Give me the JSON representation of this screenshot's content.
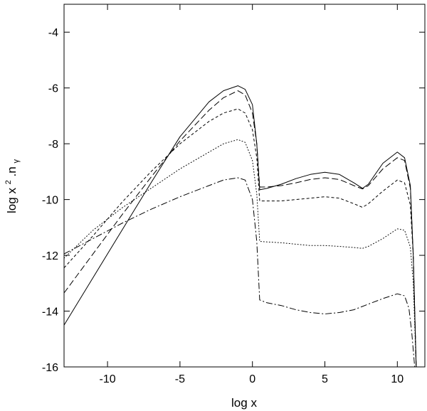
{
  "chart_data": {
    "type": "line",
    "title": "",
    "xlabel": "log x",
    "ylabel": {
      "base": "log x",
      "sup": "2",
      "mid": ".n",
      "sub": "γ"
    },
    "xlim": [
      -13,
      11.9
    ],
    "ylim": [
      -16,
      -3
    ],
    "xticks": [
      -10,
      -5,
      0,
      5,
      10
    ],
    "yticks": [
      -16,
      -14,
      -12,
      -10,
      -8,
      -6,
      -4
    ],
    "grid": false,
    "legend": "none",
    "series": [
      {
        "style": "solid",
        "points": [
          [
            -13,
            -14.5
          ],
          [
            -11,
            -12.8
          ],
          [
            -9,
            -11.1
          ],
          [
            -7,
            -9.4
          ],
          [
            -5,
            -7.75
          ],
          [
            -3,
            -6.5
          ],
          [
            -2,
            -6.1
          ],
          [
            -1,
            -5.92
          ],
          [
            -0.5,
            -6.05
          ],
          [
            0,
            -6.6
          ],
          [
            0.3,
            -8.0
          ],
          [
            0.5,
            -9.65
          ],
          [
            1,
            -9.6
          ],
          [
            2,
            -9.45
          ],
          [
            3,
            -9.25
          ],
          [
            4,
            -9.1
          ],
          [
            5,
            -9.02
          ],
          [
            6,
            -9.1
          ],
          [
            7,
            -9.4
          ],
          [
            7.6,
            -9.6
          ],
          [
            8,
            -9.45
          ],
          [
            9,
            -8.7
          ],
          [
            10,
            -8.3
          ],
          [
            10.5,
            -8.5
          ],
          [
            10.9,
            -9.5
          ],
          [
            11.1,
            -12
          ],
          [
            11.3,
            -16
          ]
        ]
      },
      {
        "style": "long-dash",
        "points": [
          [
            -13,
            -13.35
          ],
          [
            -11,
            -11.95
          ],
          [
            -9,
            -10.55
          ],
          [
            -7,
            -9.2
          ],
          [
            -5,
            -7.9
          ],
          [
            -3,
            -6.8
          ],
          [
            -2,
            -6.35
          ],
          [
            -1,
            -6.1
          ],
          [
            -0.5,
            -6.25
          ],
          [
            0,
            -6.9
          ],
          [
            0.3,
            -8.0
          ],
          [
            0.5,
            -9.55
          ],
          [
            1,
            -9.55
          ],
          [
            2,
            -9.5
          ],
          [
            3,
            -9.4
          ],
          [
            4,
            -9.28
          ],
          [
            5,
            -9.22
          ],
          [
            6,
            -9.28
          ],
          [
            7,
            -9.5
          ],
          [
            7.6,
            -9.62
          ],
          [
            8,
            -9.5
          ],
          [
            9,
            -8.9
          ],
          [
            10,
            -8.5
          ],
          [
            10.5,
            -8.6
          ],
          [
            10.9,
            -9.6
          ],
          [
            11.1,
            -12
          ],
          [
            11.3,
            -16
          ]
        ]
      },
      {
        "style": "short-dash",
        "points": [
          [
            -13,
            -12.45
          ],
          [
            -11,
            -11.3
          ],
          [
            -9,
            -10.1
          ],
          [
            -7,
            -9.0
          ],
          [
            -5,
            -8.0
          ],
          [
            -3,
            -7.2
          ],
          [
            -2,
            -6.9
          ],
          [
            -1,
            -6.75
          ],
          [
            -0.5,
            -6.9
          ],
          [
            0,
            -7.5
          ],
          [
            0.3,
            -8.5
          ],
          [
            0.5,
            -10.05
          ],
          [
            1,
            -10.05
          ],
          [
            2,
            -10.05
          ],
          [
            3,
            -10.0
          ],
          [
            4,
            -9.95
          ],
          [
            5,
            -9.9
          ],
          [
            6,
            -9.95
          ],
          [
            7,
            -10.15
          ],
          [
            7.6,
            -10.28
          ],
          [
            8,
            -10.15
          ],
          [
            9,
            -9.7
          ],
          [
            10,
            -9.3
          ],
          [
            10.5,
            -9.4
          ],
          [
            10.9,
            -10.2
          ],
          [
            11.1,
            -12
          ],
          [
            11.3,
            -16
          ]
        ]
      },
      {
        "style": "dotted",
        "points": [
          [
            -13,
            -12.1
          ],
          [
            -11,
            -11.1
          ],
          [
            -9,
            -10.3
          ],
          [
            -7,
            -9.6
          ],
          [
            -5,
            -8.9
          ],
          [
            -3,
            -8.3
          ],
          [
            -2,
            -8.0
          ],
          [
            -1,
            -7.85
          ],
          [
            -0.5,
            -7.95
          ],
          [
            0,
            -8.6
          ],
          [
            0.3,
            -9.8
          ],
          [
            0.5,
            -11.5
          ],
          [
            1,
            -11.52
          ],
          [
            2,
            -11.55
          ],
          [
            3,
            -11.6
          ],
          [
            4,
            -11.65
          ],
          [
            5,
            -11.65
          ],
          [
            6,
            -11.68
          ],
          [
            7,
            -11.72
          ],
          [
            7.6,
            -11.75
          ],
          [
            8,
            -11.68
          ],
          [
            9,
            -11.4
          ],
          [
            10,
            -11.05
          ],
          [
            10.5,
            -11.1
          ],
          [
            10.9,
            -11.7
          ],
          [
            11.1,
            -13
          ],
          [
            11.3,
            -16
          ]
        ]
      },
      {
        "style": "dash-dot",
        "points": [
          [
            -13,
            -11.95
          ],
          [
            -11,
            -11.4
          ],
          [
            -9,
            -10.85
          ],
          [
            -7,
            -10.35
          ],
          [
            -5,
            -9.9
          ],
          [
            -3,
            -9.5
          ],
          [
            -2,
            -9.3
          ],
          [
            -1,
            -9.22
          ],
          [
            -0.5,
            -9.3
          ],
          [
            0,
            -10.0
          ],
          [
            0.3,
            -11.5
          ],
          [
            0.5,
            -13.6
          ],
          [
            1,
            -13.7
          ],
          [
            2,
            -13.8
          ],
          [
            3,
            -13.95
          ],
          [
            4,
            -14.05
          ],
          [
            5,
            -14.1
          ],
          [
            6,
            -14.05
          ],
          [
            7,
            -13.95
          ],
          [
            8,
            -13.75
          ],
          [
            9,
            -13.55
          ],
          [
            10,
            -13.38
          ],
          [
            10.5,
            -13.45
          ],
          [
            10.8,
            -13.9
          ],
          [
            11.0,
            -14.8
          ],
          [
            11.2,
            -16
          ]
        ]
      }
    ]
  }
}
